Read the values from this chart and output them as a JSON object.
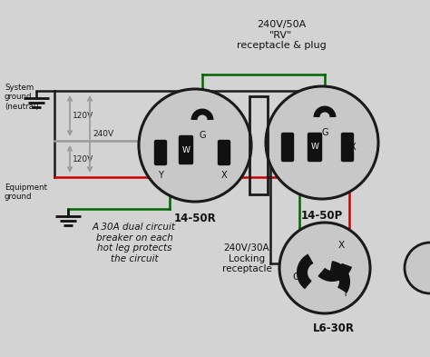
{
  "bg_color": "#d3d3d3",
  "title": "240V/50A\n\"RV\"\nreceptacle & plug",
  "label_1450R": "14-50R",
  "label_1450P": "14-50P",
  "label_L630R": "L6-30R",
  "label_240_30A": "240V/30A\nLocking\nreceptacle",
  "note_text": "A 30A dual circuit\nbreaker on each\nhot leg protects\nthe circuit",
  "sys_ground_label": "System\nground\n(neutral)",
  "equip_ground_label": "Equipment\nground",
  "label_120V_top": "120V",
  "label_120V_bot": "120V",
  "label_240V": "240V",
  "wire_black": "#1a1a1a",
  "wire_red": "#cc0000",
  "wire_green": "#006600",
  "wire_gray": "#999999",
  "slot_fill": "#111111"
}
